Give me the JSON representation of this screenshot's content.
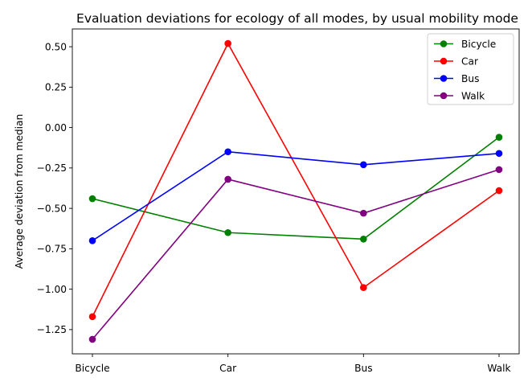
{
  "chart_data": {
    "type": "line",
    "title": "Evaluation deviations for ecology of all modes, by usual mobility mode",
    "xlabel": "",
    "ylabel": "Average deviation from median",
    "categories": [
      "Bicycle",
      "Car",
      "Bus",
      "Walk"
    ],
    "ylim": [
      -1.4,
      0.61
    ],
    "yticks": [
      0.5,
      0.25,
      0.0,
      -0.25,
      -0.5,
      -0.75,
      -1.0,
      -1.25
    ],
    "ytick_labels": [
      "0.50",
      "0.25",
      "0.00",
      "−0.25",
      "−0.50",
      "−0.75",
      "−1.00",
      "−1.25"
    ],
    "grid": false,
    "legend_position": "top-right",
    "series": [
      {
        "name": "Bicycle",
        "color": "#008000",
        "values": [
          -0.44,
          -0.65,
          -0.69,
          -0.06
        ]
      },
      {
        "name": "Car",
        "color": "#ff0000",
        "values": [
          -1.17,
          0.52,
          -0.99,
          -0.39
        ]
      },
      {
        "name": "Bus",
        "color": "#0000ff",
        "values": [
          -0.7,
          -0.15,
          -0.23,
          -0.16
        ]
      },
      {
        "name": "Walk",
        "color": "#800080",
        "values": [
          -1.31,
          -0.32,
          -0.53,
          -0.26
        ]
      }
    ]
  }
}
